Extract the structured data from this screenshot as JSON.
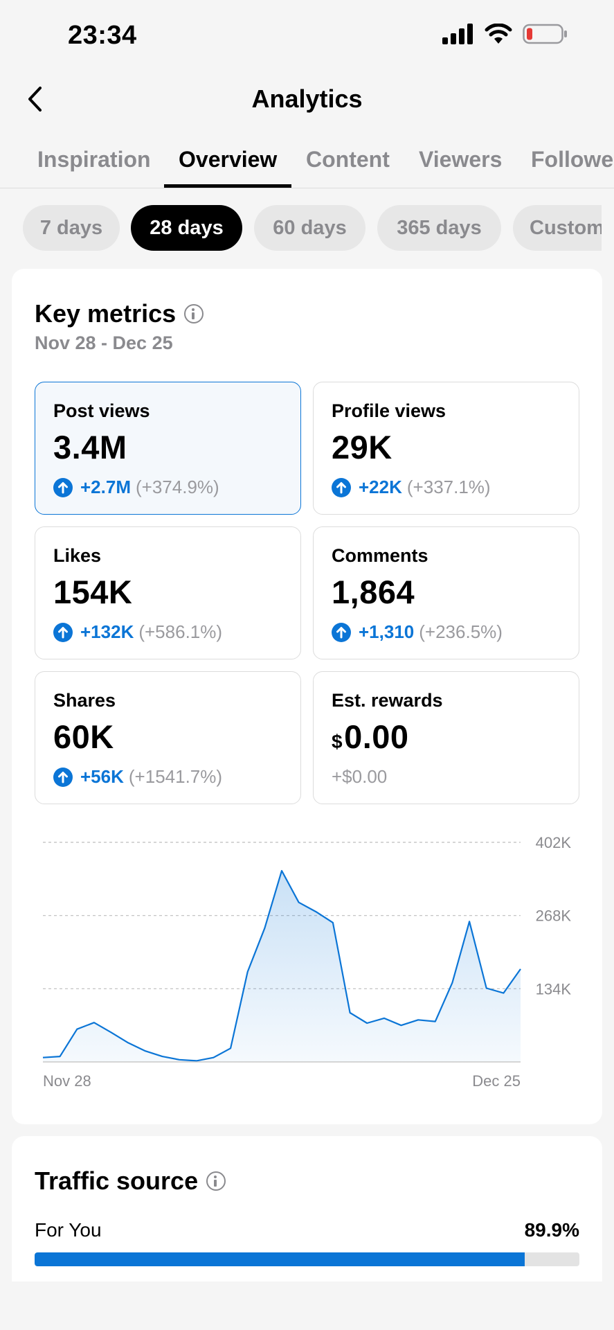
{
  "status_bar": {
    "time": "23:34",
    "battery_color": "#e53935"
  },
  "header": {
    "title": "Analytics",
    "back_icon": "chevron-left-icon"
  },
  "tabs": [
    {
      "label": "Inspiration",
      "active": false
    },
    {
      "label": "Overview",
      "active": true
    },
    {
      "label": "Content",
      "active": false
    },
    {
      "label": "Viewers",
      "active": false
    },
    {
      "label": "Followers",
      "active": false
    }
  ],
  "ranges": [
    {
      "label": "7 days",
      "active": false
    },
    {
      "label": "28 days",
      "active": true
    },
    {
      "label": "60 days",
      "active": false
    },
    {
      "label": "365 days",
      "active": false
    },
    {
      "label": "Custom",
      "active": false
    }
  ],
  "key_metrics": {
    "title": "Key metrics",
    "date_range": "Nov 28 - Dec 25",
    "metrics": [
      {
        "label": "Post views",
        "value": "3.4M",
        "change": "+2.7M",
        "change_pct": "(+374.9%)",
        "selected": true
      },
      {
        "label": "Profile views",
        "value": "29K",
        "change": "+22K",
        "change_pct": "(+337.1%)"
      },
      {
        "label": "Likes",
        "value": "154K",
        "change": "+132K",
        "change_pct": "(+586.1%)"
      },
      {
        "label": "Comments",
        "value": "1,864",
        "change": "+1,310",
        "change_pct": "(+236.5%)"
      },
      {
        "label": "Shares",
        "value": "60K",
        "change": "+56K",
        "change_pct": "(+1541.7%)"
      },
      {
        "label": "Est. rewards",
        "currency": "$",
        "value": "0.00",
        "change": "+$0.00"
      }
    ]
  },
  "chart_data": {
    "type": "area",
    "series": [
      {
        "values": [
          8000,
          10000,
          60000,
          72000,
          54000,
          35000,
          20000,
          10000,
          4000,
          2000,
          8000,
          25000,
          165000,
          245000,
          350000,
          292000,
          275000,
          255000,
          90000,
          71000,
          80000,
          67000,
          77000,
          74000,
          145000,
          257000,
          135000,
          126000,
          170000
        ]
      }
    ],
    "x_tick_labels": [
      "Nov 28",
      "Dec 25"
    ],
    "y_tick_labels": [
      "402K",
      "268K",
      "134K"
    ],
    "y_ticks": [
      402000,
      268000,
      134000
    ],
    "ylim": [
      0,
      402000
    ],
    "grid": true,
    "color": "#0b75d6"
  },
  "traffic_source": {
    "title": "Traffic source",
    "items": [
      {
        "name": "For You",
        "percent_label": "89.9%",
        "percent": 89.9
      }
    ],
    "bar_color": "#0b75d6"
  }
}
